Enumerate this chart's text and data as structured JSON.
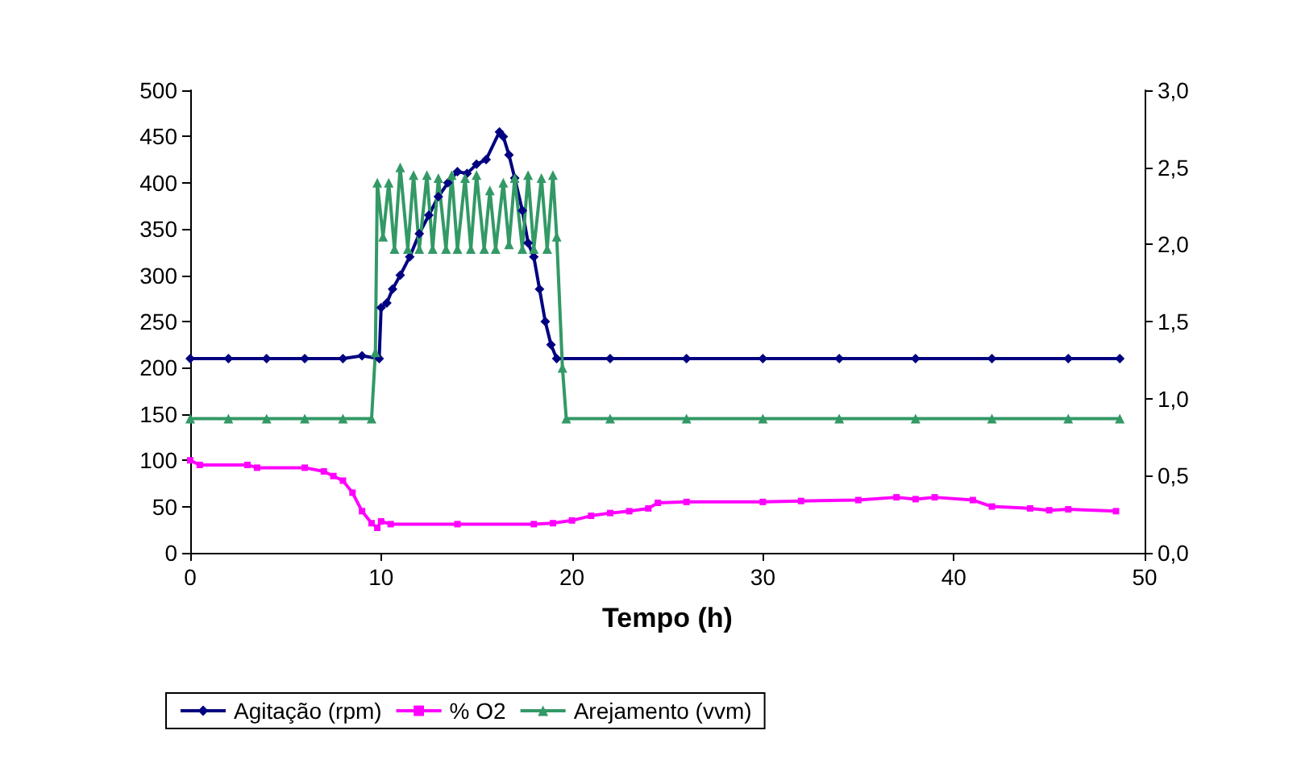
{
  "chart_data": {
    "type": "line",
    "xlabel": "Tempo (h)",
    "xlim": [
      0,
      50
    ],
    "xticks": [
      0,
      10,
      20,
      30,
      40,
      50
    ],
    "ylim": [
      0,
      500
    ],
    "yticks": [
      0,
      50,
      100,
      150,
      200,
      250,
      300,
      350,
      400,
      450,
      500
    ],
    "y2lim": [
      0,
      3
    ],
    "y2ticks": [
      {
        "value": 0,
        "label": "0,0"
      },
      {
        "value": 0.5,
        "label": "0,5"
      },
      {
        "value": 1,
        "label": "1,0"
      },
      {
        "value": 1.5,
        "label": "1,5"
      },
      {
        "value": 2,
        "label": "2,0"
      },
      {
        "value": 2.5,
        "label": "2,5"
      },
      {
        "value": 3,
        "label": "3,0"
      }
    ],
    "grid": false,
    "legend": "bottom",
    "series": [
      {
        "name": "Agitação (rpm)",
        "color": "#000080",
        "marker": "diamond",
        "x": [
          0,
          2,
          4,
          6,
          8,
          9,
          9.9,
          10,
          10.3,
          10.6,
          11,
          11.5,
          12,
          12.5,
          13,
          13.5,
          14,
          14.5,
          15,
          15.5,
          16.2,
          16.4,
          16.7,
          17,
          17.4,
          17.7,
          18,
          18.3,
          18.6,
          18.9,
          19.2,
          22,
          26,
          30,
          34,
          38,
          42,
          46,
          48.7
        ],
        "values": [
          210,
          210,
          210,
          210,
          210,
          213,
          210,
          265,
          270,
          285,
          300,
          320,
          345,
          365,
          385,
          400,
          412,
          410,
          420,
          425,
          455,
          450,
          430,
          405,
          370,
          335,
          320,
          285,
          250,
          225,
          210,
          210,
          210,
          210,
          210,
          210,
          210,
          210,
          210
        ]
      },
      {
        "name": "% O2",
        "color": "#ff00ff",
        "marker": "square",
        "x": [
          0,
          0.5,
          3,
          3.5,
          6,
          7,
          7.5,
          8,
          8.5,
          9,
          9.5,
          9.8,
          10,
          10.5,
          14,
          18,
          19,
          20,
          21,
          22,
          23,
          24,
          24.5,
          26,
          30,
          32,
          35,
          37,
          38,
          39,
          41,
          42,
          44,
          45,
          46,
          48.5
        ],
        "values": [
          100,
          95,
          95,
          92,
          92,
          88,
          83,
          78,
          65,
          45,
          32,
          27,
          34,
          31,
          31,
          31,
          32,
          35,
          40,
          43,
          45,
          48,
          54,
          55,
          55,
          56,
          57,
          60,
          58,
          60,
          57,
          50,
          48,
          46,
          47,
          45
        ]
      },
      {
        "name": "Arejamento (vvm)",
        "color": "#339966",
        "marker": "triangle",
        "axis": "y2",
        "x": [
          0,
          2,
          4,
          6,
          8,
          9.5,
          9.7,
          9.8,
          10.1,
          10.4,
          10.7,
          11,
          11.4,
          11.7,
          12,
          12.4,
          12.7,
          13,
          13.4,
          13.7,
          14,
          14.4,
          14.7,
          15,
          15.4,
          15.7,
          16,
          16.4,
          16.7,
          17,
          17.4,
          17.7,
          18,
          18.4,
          18.7,
          19,
          19.2,
          19.5,
          19.7,
          22,
          26,
          30,
          34,
          38,
          42,
          46,
          48.7
        ],
        "values": [
          0.87,
          0.87,
          0.87,
          0.87,
          0.87,
          0.87,
          1.3,
          2.4,
          2.05,
          2.4,
          1.97,
          2.5,
          1.97,
          2.45,
          1.97,
          2.45,
          1.97,
          2.43,
          1.97,
          2.45,
          1.97,
          2.43,
          1.97,
          2.45,
          1.97,
          2.35,
          1.97,
          2.4,
          2.0,
          2.43,
          1.97,
          2.45,
          1.97,
          2.43,
          1.97,
          2.45,
          2.05,
          1.2,
          0.87,
          0.87,
          0.87,
          0.87,
          0.87,
          0.87,
          0.87,
          0.87,
          0.87
        ]
      }
    ]
  }
}
